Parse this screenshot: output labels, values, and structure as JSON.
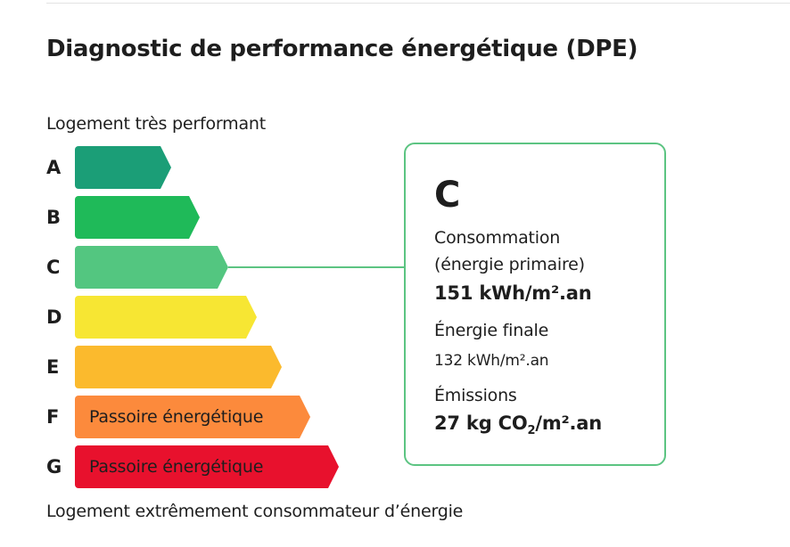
{
  "title": "Diagnostic de performance énergétique (DPE)",
  "caption_top": "Logement très performant",
  "caption_bottom": "Logement extrêmement consommateur d’énergie",
  "scale": [
    {
      "letter": "A",
      "label": "",
      "color": "#1b9e77"
    },
    {
      "letter": "B",
      "label": "",
      "color": "#1fba59"
    },
    {
      "letter": "C",
      "label": "",
      "color": "#53c680"
    },
    {
      "letter": "D",
      "label": "",
      "color": "#f7e633"
    },
    {
      "letter": "E",
      "label": "",
      "color": "#fbba2d"
    },
    {
      "letter": "F",
      "label": "Passoire énergétique",
      "color": "#fc8a3c"
    },
    {
      "letter": "G",
      "label": "Passoire énergétique",
      "color": "#e8112d"
    }
  ],
  "current_class": "C",
  "result": {
    "class": "C",
    "consumption_label_1": "Consommation",
    "consumption_label_2": "(énergie primaire)",
    "consumption_value": "151 kWh/m².an",
    "final_label": "Énergie finale",
    "final_value": "132 kWh/m².an",
    "emissions_label": "Émissions",
    "emissions_value_prefix": "27 kg CO",
    "emissions_value_sub": "2",
    "emissions_value_suffix": "/m².an"
  },
  "accent_color": "#5cc482"
}
